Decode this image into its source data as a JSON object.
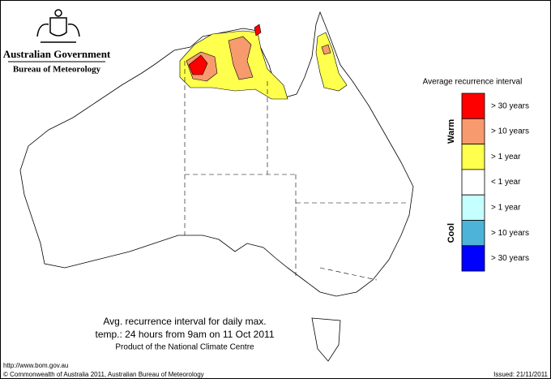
{
  "header": {
    "government": "Australian Government",
    "bureau": "Bureau of Meteorology"
  },
  "legend": {
    "title": "Average recurrence interval",
    "groups": [
      "Warm",
      "Cool"
    ],
    "items": [
      {
        "label": "> 30 years",
        "color": "#ff0000"
      },
      {
        "label": "> 10 years",
        "color": "#f79a6e"
      },
      {
        "label": "> 1 year",
        "color": "#ffff4d"
      },
      {
        "label": "< 1 year",
        "color": "#ffffff"
      },
      {
        "label": "> 1 year",
        "color": "#c6ffff"
      },
      {
        "label": "> 10 years",
        "color": "#4db3d9"
      },
      {
        "label": "> 30 years",
        "color": "#0000ff"
      }
    ]
  },
  "caption": {
    "lines": [
      "Avg. recurrence interval for daily max.",
      "temp.: 24 hours from 9am on 11 Oct 2011",
      "Product of the National Climate Centre"
    ]
  },
  "footer": {
    "url": "http://www.bom.gov.au",
    "copyright": "© Commonwealth of Australia 2011, Australian Bureau of Meteorology",
    "issued": "Issued: 21/11/2011"
  }
}
